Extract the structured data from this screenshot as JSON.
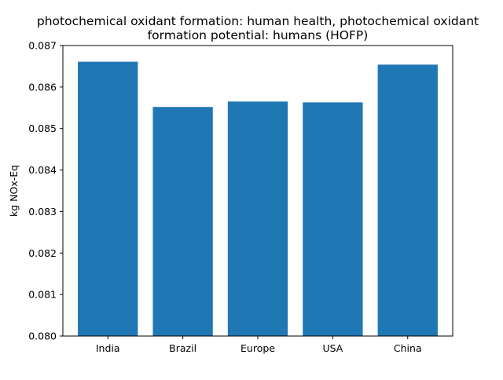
{
  "chart_data": {
    "type": "bar",
    "title_lines": [
      "photochemical oxidant formation: human health, photochemical oxidant",
      "formation potential: humans (HOFP)"
    ],
    "xlabel": "",
    "ylabel": "kg NOx-Eq",
    "categories": [
      "India",
      "Brazil",
      "Europe",
      "USA",
      "China"
    ],
    "values": [
      0.08661,
      0.08552,
      0.08565,
      0.08563,
      0.08654
    ],
    "ylim": [
      0.08,
      0.087
    ],
    "yticks": [
      "0.080",
      "0.081",
      "0.082",
      "0.083",
      "0.084",
      "0.085",
      "0.086",
      "0.087"
    ],
    "grid": false,
    "bar_color": "#1f77b4"
  }
}
